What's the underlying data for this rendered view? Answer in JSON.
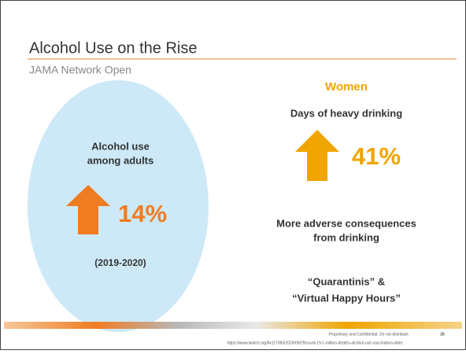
{
  "header": {
    "title": "Alcohol Use on the Rise",
    "subtitle": "JAMA Network Open"
  },
  "left": {
    "lines": [
      "Alcohol use",
      "among adults"
    ],
    "stat": "14%",
    "period": "(2019-2020)"
  },
  "right": {
    "heading": "Women",
    "label": "Days of heavy drinking",
    "stat": "41%",
    "points": [
      [
        "More adverse consequences",
        "from drinking"
      ],
      [
        "“Quarantinis” &",
        "“Virtual Happy Hours”"
      ]
    ]
  },
  "footer": {
    "notice": "Proprietary and Confidential. Do not distribute.",
    "page": "26",
    "url": "https://www.iwatch.org/fw117083/2020/09/29/covid-19-1-million-deaths-alcohol-use-vaccination-older"
  }
}
